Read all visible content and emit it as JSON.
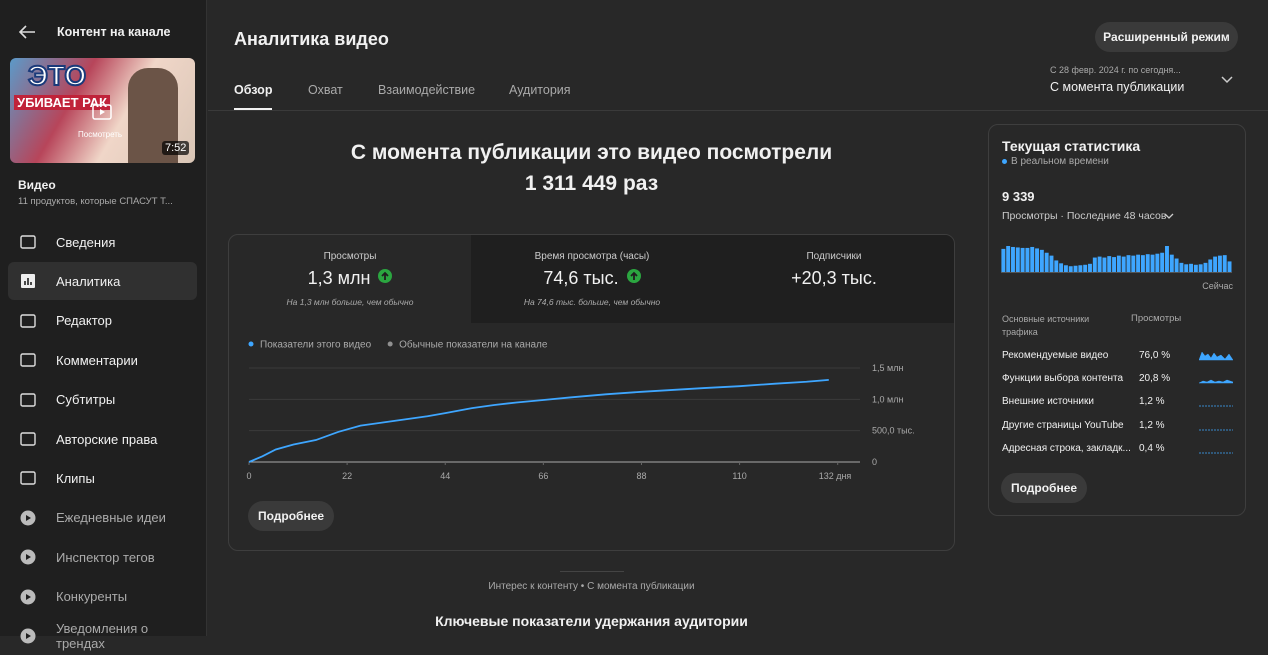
{
  "sidebar": {
    "back_title": "Контент на канале",
    "thumbnail": {
      "overlay_top": "ЭТО",
      "overlay_bottom": "УБИВАЕТ РАК",
      "watch": "Посмотреть",
      "duration": "7:52"
    },
    "video_label": "Видео",
    "video_title": "11 продуктов, которые СПАСУТ Т...",
    "menu": [
      "Сведения",
      "Аналитика",
      "Редактор",
      "Комментарии",
      "Субтитры",
      "Авторские права",
      "Клипы",
      "Ежедневные идеи",
      "Инспектор тегов",
      "Конкуренты",
      "Уведомления о трендах"
    ]
  },
  "header": {
    "title": "Аналитика видео",
    "advanced_button": "Расширенный режим",
    "tabs": [
      "Обзор",
      "Охват",
      "Взаимодействие",
      "Аудитория"
    ],
    "date_range": {
      "hint": "С 28 февр. 2024 г. по сегодня...",
      "value": "С момента публикации"
    }
  },
  "summary": {
    "line1": "С момента публикации это видео посмотрели",
    "line2": "1 311 449 раз"
  },
  "metrics": [
    {
      "label": "Просмотры",
      "value": "1,3 млн",
      "note": "На 1,3 млн больше, чем обычно"
    },
    {
      "label": "Время просмотра (часы)",
      "value": "74,6 тыс.",
      "note": "На 74,6 тыс. больше, чем обычно"
    },
    {
      "label": "Подписчики",
      "value": "+20,3 тыс."
    }
  ],
  "chart_data": {
    "type": "line",
    "x": [
      0,
      3,
      6,
      10,
      15,
      20,
      25,
      30,
      35,
      40,
      44,
      50,
      55,
      60,
      66,
      72,
      80,
      88,
      95,
      102,
      110,
      118,
      125,
      130
    ],
    "series": [
      {
        "name": "Показатели этого видео",
        "color": "#3ea6ff",
        "values": [
          0,
          90000,
          200000,
          280000,
          350000,
          480000,
          580000,
          630000,
          680000,
          730000,
          780000,
          860000,
          910000,
          950000,
          990000,
          1030000,
          1080000,
          1120000,
          1150000,
          1180000,
          1210000,
          1250000,
          1280000,
          1310000
        ]
      }
    ],
    "reference_legend": {
      "name": "Обычные показатели на канале",
      "color": "#909090"
    },
    "xlim": [
      0,
      137
    ],
    "xticks": [
      0,
      22,
      44,
      66,
      88,
      110,
      {
        "value": 132,
        "label": "132 дня"
      }
    ],
    "ylim": [
      0,
      1500000
    ],
    "yticks": [
      0,
      {
        "value": 500000,
        "label": "500,0 тыс."
      },
      {
        "value": 1000000,
        "label": "1,0 млн"
      },
      {
        "value": 1500000,
        "label": "1,5 млн"
      }
    ],
    "grid": true
  },
  "more_button": "Подробнее",
  "footer": {
    "subtitle": "Интерес к контенту • С момента публикации",
    "heading": "Ключевые показатели удержания аудитории"
  },
  "realtime": {
    "title": "Текущая статистика",
    "live": "В реальном времени",
    "count": "9 339",
    "description": "Просмотры · Последние 48 часов",
    "now": "Сейчас",
    "bars": [
      240,
      270,
      260,
      255,
      250,
      250,
      260,
      245,
      230,
      200,
      170,
      120,
      90,
      70,
      60,
      65,
      70,
      75,
      85,
      150,
      160,
      150,
      165,
      155,
      170,
      160,
      175,
      170,
      180,
      175,
      185,
      180,
      190,
      200,
      270,
      180,
      140,
      95,
      80,
      85,
      75,
      80,
      95,
      130,
      160,
      170,
      175,
      110
    ],
    "sources_header": "Основные источники трафика",
    "views_header": "Просмотры",
    "sources": [
      {
        "name": "Рекомендуемые видео",
        "share": "76,0 %"
      },
      {
        "name": "Функции выбора контента",
        "share": "20,8 %"
      },
      {
        "name": "Внешние источники",
        "share": "1,2 %"
      },
      {
        "name": "Другие страницы YouTube",
        "share": "1,2 %"
      },
      {
        "name": "Адресная строка, закладк...",
        "share": "0,4 %"
      }
    ],
    "more_button": "Подробнее"
  }
}
